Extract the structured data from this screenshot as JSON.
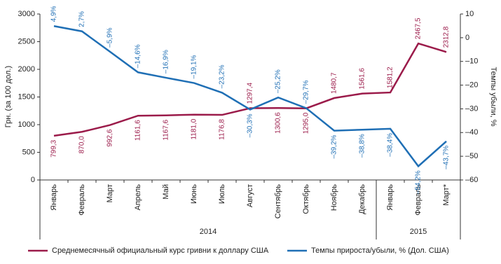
{
  "chart_data": {
    "type": "line",
    "y_label": "Грн. (за 100 дол.)",
    "y2_label": "Темпы убыли, %",
    "categories": [
      "Январь",
      "Февраль",
      "Март",
      "Апрель",
      "Май",
      "Июнь",
      "Июль",
      "Август",
      "Сентябрь",
      "Октябрь",
      "Ноябрь",
      "Декабрь",
      "Январь",
      "Февраль",
      "Март*"
    ],
    "groups": [
      {
        "label": "2014",
        "count": 12
      },
      {
        "label": "2015",
        "count": 3
      }
    ],
    "series": [
      {
        "name": "Среднемесячный официальный курс гривни к доллару США",
        "color": "#9b1b4a",
        "axis": "y",
        "values": [
          799.3,
          870.0,
          992.6,
          1161.6,
          1167.6,
          1181.0,
          1176.8,
          1297.4,
          1300.6,
          1295.0,
          1480.7,
          1561.6,
          1581.2,
          2467.5,
          2312.8
        ],
        "value_labels": [
          "799,3",
          "870,0",
          "992,6",
          "1161,6",
          "1167,6",
          "1181,0",
          "1176,8",
          "1297,4",
          "1300,6",
          "1295,0",
          "1480,7",
          "1561,6",
          "1581,2",
          "2467,5",
          "2312,8"
        ]
      },
      {
        "name": "Темпы прироста/убыли, % (Дол. США)",
        "color": "#1f6fb5",
        "axis": "y2",
        "values": [
          4.9,
          2.7,
          -5.9,
          -14.6,
          -16.9,
          -19.1,
          -23.2,
          -30.3,
          -25.2,
          -29.7,
          -39.2,
          -38.8,
          -38.4,
          -54.2,
          -43.7
        ],
        "value_labels": [
          "4,9%",
          "2,7%",
          "–5,9%",
          "–14,6%",
          "–16,9%",
          "–19,1%",
          "–23,2%",
          "–30,3%",
          "–25,2%",
          "–29,7%",
          "–39,2%",
          "–38,8%",
          "–38,4%",
          "–54,2%",
          "–43,7%"
        ]
      }
    ],
    "ylim": [
      0,
      3000
    ],
    "yticks": [
      0,
      500,
      1000,
      1500,
      2000,
      2500,
      3000
    ],
    "y2lim": [
      -60,
      10
    ],
    "y2ticks": [
      {
        "value": -60,
        "label": "–60"
      },
      {
        "value": -50,
        "label": "–50"
      },
      {
        "value": -40,
        "label": "–40"
      },
      {
        "value": -30,
        "label": "–30"
      },
      {
        "value": -20,
        "label": "–20"
      },
      {
        "value": -10,
        "label": "–10"
      },
      0,
      10
    ]
  }
}
